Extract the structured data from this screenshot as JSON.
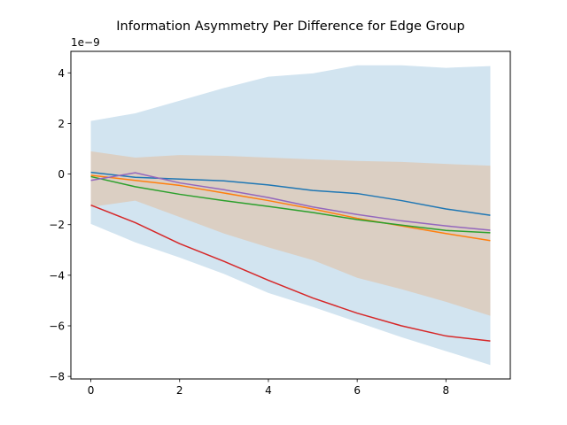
{
  "chart_data": {
    "type": "line",
    "title": "Information Asymmetry Per Difference for Edge Group",
    "offset_text": "1e−9",
    "xlabel": "",
    "ylabel": "",
    "xlim": [
      -0.45,
      9.45
    ],
    "ylim": [
      -8.1,
      4.85
    ],
    "x_ticks": [
      0,
      2,
      4,
      6,
      8
    ],
    "y_ticks": [
      -8,
      -6,
      -4,
      -2,
      0,
      2,
      4
    ],
    "x_tick_labels": [
      "0",
      "2",
      "4",
      "6",
      "8"
    ],
    "y_tick_labels": [
      "−8",
      "−6",
      "−4",
      "−2",
      "0",
      "2",
      "4"
    ],
    "grid": false,
    "x": [
      0,
      1,
      2,
      3,
      4,
      5,
      6,
      7,
      8,
      9
    ],
    "bands": [
      {
        "color": "#1f77b4",
        "opacity": 0.2,
        "upper": [
          2.1,
          2.4,
          2.9,
          3.4,
          3.85,
          3.98,
          4.3,
          4.3,
          4.2,
          4.27
        ],
        "lower": [
          -1.97,
          -2.7,
          -3.3,
          -3.95,
          -4.7,
          -5.25,
          -5.85,
          -6.45,
          -7.0,
          -7.55
        ]
      },
      {
        "color": "#ff7f0e",
        "opacity": 0.2,
        "upper": [
          0.9,
          0.65,
          0.75,
          0.72,
          0.65,
          0.58,
          0.52,
          0.48,
          0.4,
          0.33
        ],
        "lower": [
          -1.3,
          -1.05,
          -1.7,
          -2.35,
          -2.9,
          -3.4,
          -4.1,
          -4.55,
          -5.05,
          -5.6
        ]
      }
    ],
    "series": [
      {
        "color": "#1f77b4",
        "values": [
          0.07,
          -0.13,
          -0.2,
          -0.27,
          -0.43,
          -0.65,
          -0.77,
          -1.05,
          -1.38,
          -1.63
        ]
      },
      {
        "color": "#ff7f0e",
        "values": [
          -0.05,
          -0.25,
          -0.45,
          -0.75,
          -1.05,
          -1.38,
          -1.75,
          -2.05,
          -2.35,
          -2.63
        ]
      },
      {
        "color": "#2ca02c",
        "values": [
          -0.1,
          -0.5,
          -0.8,
          -1.05,
          -1.28,
          -1.52,
          -1.8,
          -2.02,
          -2.23,
          -2.32
        ]
      },
      {
        "color": "#d62728",
        "values": [
          -1.23,
          -1.92,
          -2.75,
          -3.45,
          -4.2,
          -4.9,
          -5.5,
          -6.0,
          -6.4,
          -6.6
        ]
      },
      {
        "color": "#9467bd",
        "values": [
          -0.25,
          0.05,
          -0.35,
          -0.62,
          -0.93,
          -1.3,
          -1.6,
          -1.85,
          -2.05,
          -2.22
        ]
      }
    ]
  }
}
